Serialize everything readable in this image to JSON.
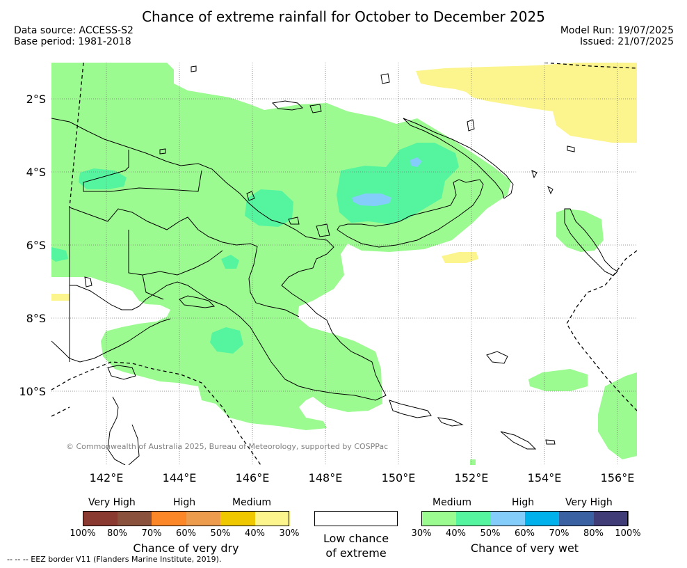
{
  "title": "Chance of extreme rainfall for October to December 2025",
  "data_source": "Data source: ACCESS-S2",
  "base_period": "Base period: 1981-2018",
  "model_run": "Model Run: 19/07/2025",
  "issued": "Issued: 21/07/2025",
  "map": {
    "lon_ticks": [
      "142°E",
      "144°E",
      "146°E",
      "148°E",
      "150°E",
      "152°E",
      "154°E",
      "156°E"
    ],
    "lat_ticks": [
      "2°S",
      "4°S",
      "6°S",
      "8°S",
      "10°S"
    ],
    "copyright": "© Commonwealth of Australia 2025, Bureau of Meteorology, supported by COSPPac",
    "colors": {
      "wet_medium": "#9cfb90",
      "wet_medium_high": "#55f5a0",
      "wet_high": "#84cdfb",
      "dry_medium": "#fcf58d",
      "coast": "#000000",
      "grid": "#777777"
    }
  },
  "legend": {
    "dry": {
      "levels": [
        "Very High",
        "High",
        "Medium"
      ],
      "ticks": [
        "100%",
        "80%",
        "70%",
        "60%",
        "50%",
        "40%",
        "30%"
      ],
      "colors": [
        "#8b3a32",
        "#8a513c",
        "#fb8729",
        "#ec9c4c",
        "#f0c800",
        "#fcf58d"
      ],
      "caption": "Chance of very dry"
    },
    "low": {
      "caption_line1": "Low chance",
      "caption_line2": "of extreme"
    },
    "wet": {
      "levels": [
        "Medium",
        "High",
        "Very High"
      ],
      "ticks": [
        "30%",
        "40%",
        "50%",
        "60%",
        "70%",
        "80%",
        "100%"
      ],
      "colors": [
        "#9cfb90",
        "#55f5a0",
        "#84cdfb",
        "#00b1ec",
        "#3a62a2",
        "#403c78"
      ],
      "caption": "Chance of very wet"
    }
  },
  "eez_note": "-- -- -- EEZ border V11 (Flanders Marine Institute, 2019)."
}
